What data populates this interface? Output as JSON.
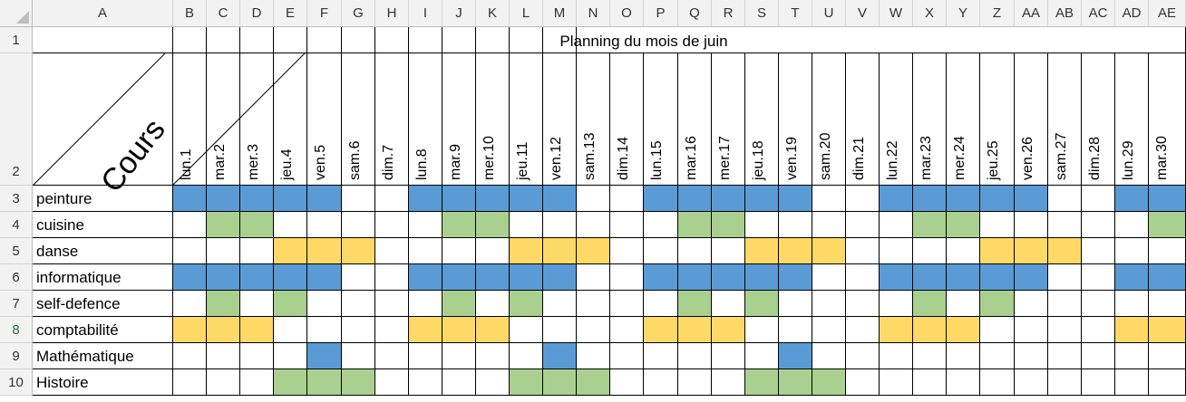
{
  "columns": [
    "A",
    "B",
    "C",
    "D",
    "E",
    "F",
    "G",
    "H",
    "I",
    "J",
    "K",
    "L",
    "M",
    "N",
    "O",
    "P",
    "Q",
    "R",
    "S",
    "T",
    "U",
    "V",
    "W",
    "X",
    "Y",
    "Z",
    "AA",
    "AB",
    "AC",
    "AD",
    "AE"
  ],
  "row_numbers": [
    "1",
    "2",
    "3",
    "4",
    "5",
    "6",
    "7",
    "8",
    "9",
    "10"
  ],
  "selected_row": "8",
  "title": "Planning du mois de juin",
  "corner_label": "Cours",
  "days": [
    "lun.1",
    "mar.2",
    "mer.3",
    "jeu.4",
    "ven.5",
    "sam.6",
    "dim.7",
    "lun.8",
    "mar.9",
    "mer.10",
    "jeu.11",
    "ven.12",
    "sam.13",
    "dim.14",
    "lun.15",
    "mar.16",
    "mer.17",
    "jeu.18",
    "ven.19",
    "sam.20",
    "dim.21",
    "lun.22",
    "mar.23",
    "mer.24",
    "jeu.25",
    "ven.26",
    "sam.27",
    "dim.28",
    "lun.29",
    "mar.30"
  ],
  "colors": {
    "blue": "#5b9bd5",
    "green": "#a9d08e",
    "yellow": "#ffd966"
  },
  "courses": [
    {
      "name": "peinture",
      "color": "blue",
      "days": [
        1,
        2,
        3,
        4,
        5,
        8,
        9,
        10,
        11,
        12,
        15,
        16,
        17,
        18,
        19,
        22,
        23,
        24,
        25,
        26,
        29,
        30
      ]
    },
    {
      "name": "cuisine",
      "color": "green",
      "days": [
        2,
        3,
        9,
        10,
        16,
        17,
        23,
        24,
        30
      ]
    },
    {
      "name": "danse",
      "color": "yellow",
      "days": [
        4,
        5,
        6,
        11,
        12,
        13,
        18,
        19,
        20,
        25,
        26,
        27
      ]
    },
    {
      "name": "informatique",
      "color": "blue",
      "days": [
        1,
        2,
        3,
        4,
        5,
        8,
        9,
        10,
        11,
        12,
        15,
        16,
        17,
        18,
        19,
        22,
        23,
        24,
        25,
        26,
        29,
        30
      ]
    },
    {
      "name": "self-defence",
      "color": "green",
      "days": [
        2,
        4,
        9,
        11,
        16,
        18,
        23,
        25
      ]
    },
    {
      "name": "comptabilité",
      "color": "yellow",
      "days": [
        1,
        2,
        3,
        8,
        9,
        10,
        15,
        16,
        17,
        22,
        23,
        24,
        29,
        30
      ]
    },
    {
      "name": "Mathématique",
      "color": "blue",
      "days": [
        5,
        12,
        19
      ]
    },
    {
      "name": "Histoire",
      "color": "green",
      "days": [
        4,
        5,
        6,
        11,
        12,
        13,
        18,
        19,
        20
      ]
    }
  ]
}
